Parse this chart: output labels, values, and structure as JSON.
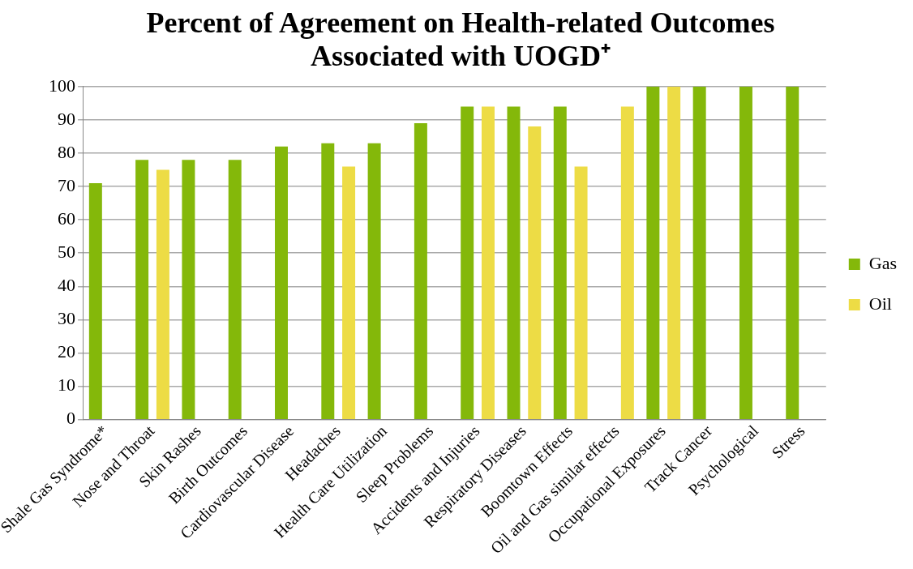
{
  "chart_data": {
    "type": "bar",
    "title": "Percent of Agreement on Health-related Outcomes\nAssociated with UOGD⁺",
    "categories": [
      "Shale Gas Syndrome*",
      "Nose and Throat",
      "Skin Rashes",
      "Birth Outcomes",
      "Cardiovascular Disease",
      "Headaches",
      "Health Care Utilization",
      "Sleep Problems",
      "Accidents and Injuries",
      "Respiratory Diseases",
      "Boomtown Effects",
      "Oil and Gas similar effects",
      "Occupational Exposures",
      "Track Cancer",
      "Psychological",
      "Stress"
    ],
    "series": [
      {
        "name": "Gas",
        "color": "#84b80a",
        "values": [
          71,
          78,
          78,
          78,
          82,
          83,
          83,
          89,
          94,
          94,
          94,
          null,
          100,
          100,
          100,
          100
        ]
      },
      {
        "name": "Oil",
        "color": "#eddc45",
        "values": [
          null,
          75,
          null,
          null,
          null,
          76,
          null,
          null,
          94,
          88,
          76,
          94,
          100,
          null,
          null,
          null
        ]
      }
    ],
    "ylim": [
      0,
      100
    ],
    "yticks": [
      0,
      10,
      20,
      30,
      40,
      50,
      60,
      70,
      80,
      90,
      100
    ],
    "grid": "y",
    "legend": "right"
  }
}
